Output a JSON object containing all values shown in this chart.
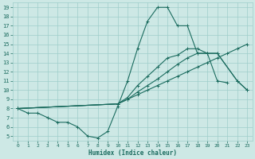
{
  "xlabel": "Humidex (Indice chaleur)",
  "background_color": "#cde8e5",
  "line_color": "#1a6b5e",
  "grid_color": "#9ececa",
  "xlim": [
    -0.5,
    23.5
  ],
  "ylim": [
    4.5,
    19.5
  ],
  "xticks": [
    0,
    1,
    2,
    3,
    4,
    5,
    6,
    7,
    8,
    9,
    10,
    11,
    12,
    13,
    14,
    15,
    16,
    17,
    18,
    19,
    20,
    21,
    22,
    23
  ],
  "yticks": [
    5,
    6,
    7,
    8,
    9,
    10,
    11,
    12,
    13,
    14,
    15,
    16,
    17,
    18,
    19
  ],
  "series": [
    {
      "x": [
        0,
        1,
        2,
        3,
        4,
        5,
        6,
        7,
        8,
        9,
        10,
        11,
        12,
        13,
        14,
        15,
        16,
        17,
        18,
        19,
        20,
        21
      ],
      "y": [
        8,
        7.5,
        7.5,
        7,
        6.5,
        6.5,
        6,
        5,
        4.8,
        5.5,
        8.2,
        11,
        14.5,
        17.5,
        19,
        19,
        17,
        17,
        14,
        14,
        11,
        10.8
      ]
    },
    {
      "x": [
        0,
        10,
        11,
        12,
        13,
        14,
        15,
        16,
        17,
        18,
        19,
        20,
        21,
        22,
        23
      ],
      "y": [
        8,
        8.5,
        9,
        9.5,
        10,
        10.5,
        11,
        11.5,
        12,
        12.5,
        13,
        13.5,
        14,
        14.5,
        15
      ]
    },
    {
      "x": [
        0,
        10,
        11,
        12,
        13,
        14,
        15,
        16,
        17,
        18,
        19,
        20,
        22,
        23
      ],
      "y": [
        8,
        8.5,
        9,
        9.8,
        10.5,
        11.2,
        12,
        12.8,
        13.5,
        14,
        14,
        14,
        11,
        10
      ]
    },
    {
      "x": [
        0,
        10,
        11,
        12,
        13,
        14,
        15,
        16,
        17,
        18,
        19,
        20,
        22,
        23
      ],
      "y": [
        8,
        8.5,
        9.2,
        10.5,
        11.5,
        12.5,
        13.5,
        13.8,
        14.5,
        14.5,
        14,
        14,
        11,
        10
      ]
    }
  ]
}
